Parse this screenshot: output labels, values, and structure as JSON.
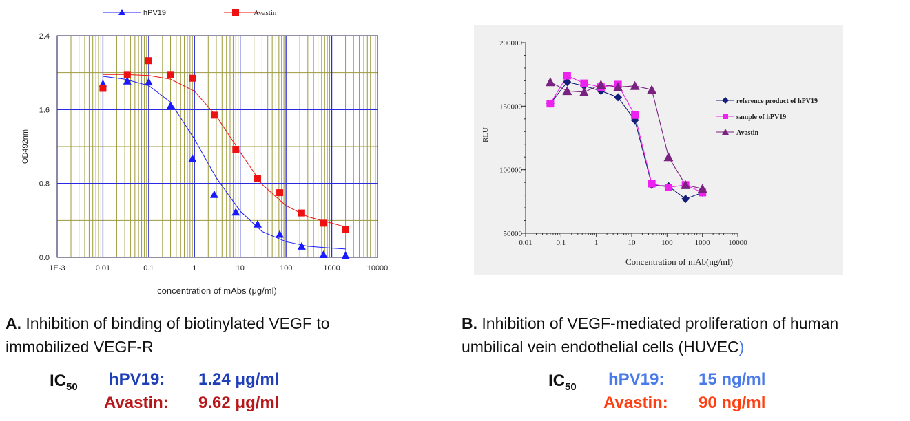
{
  "colors": {
    "a_h": "#1a1aff",
    "a_a": "#ee1111",
    "b_ref": "#141e78",
    "b_samp": "#ee22ee",
    "b_av": "#7a2280",
    "ic_a_h": "#1f3fb8",
    "ic_a_a": "#b8171a",
    "ic_b_h": "#4a7ae8",
    "ic_b_a": "#ff3f11"
  },
  "chart_data": [
    {
      "type": "scatter",
      "title": "",
      "xlabel": "concentration of mAbs (μg/ml)",
      "ylabel": "OD492nm",
      "xscale": "log",
      "xlim": [
        0.001,
        10000
      ],
      "ylim": [
        0.0,
        2.4
      ],
      "xticks": [
        "1E-3",
        "0.01",
        "0.1",
        "1",
        "10",
        "100",
        "1000",
        "10000"
      ],
      "yticks": [
        "0.0",
        "0.8",
        "1.6",
        "2.4"
      ],
      "grid": true,
      "legend": "top",
      "series": [
        {
          "name": "hPV19",
          "marker": "triangle",
          "x": [
            0.01,
            0.034,
            0.1,
            0.3,
            0.9,
            2.7,
            8,
            24,
            73,
            220,
            660,
            2000
          ],
          "y": [
            1.88,
            1.91,
            1.9,
            1.64,
            1.07,
            0.68,
            0.49,
            0.36,
            0.25,
            0.12,
            0.03,
            0.02
          ],
          "fit": [
            [
              0.01,
              1.96
            ],
            [
              0.03,
              1.93
            ],
            [
              0.1,
              1.86
            ],
            [
              0.3,
              1.68
            ],
            [
              1,
              1.28
            ],
            [
              3,
              0.86
            ],
            [
              10,
              0.5
            ],
            [
              30,
              0.28
            ],
            [
              100,
              0.17
            ],
            [
              300,
              0.12
            ],
            [
              1000,
              0.1
            ],
            [
              2000,
              0.09
            ]
          ]
        },
        {
          "name": "Avastin",
          "marker": "square",
          "x": [
            0.01,
            0.034,
            0.1,
            0.3,
            0.9,
            2.7,
            8,
            24,
            73,
            220,
            660,
            2000
          ],
          "y": [
            1.83,
            1.98,
            2.13,
            1.98,
            1.94,
            1.54,
            1.17,
            0.85,
            0.7,
            0.48,
            0.37,
            0.3
          ],
          "fit": [
            [
              0.01,
              1.98
            ],
            [
              0.03,
              1.98
            ],
            [
              0.1,
              1.97
            ],
            [
              0.3,
              1.93
            ],
            [
              1,
              1.8
            ],
            [
              3,
              1.53
            ],
            [
              10,
              1.14
            ],
            [
              30,
              0.79
            ],
            [
              100,
              0.56
            ],
            [
              300,
              0.44
            ],
            [
              1000,
              0.37
            ],
            [
              2000,
              0.33
            ]
          ]
        }
      ]
    },
    {
      "type": "line",
      "title": "",
      "xlabel": "Concentration of mAb(ng/ml)",
      "ylabel": "RLU",
      "xscale": "log",
      "xlim": [
        0.01,
        10000
      ],
      "ylim": [
        50000,
        200000
      ],
      "xticks": [
        "0.01",
        "0.1",
        "1",
        "10",
        "100",
        "1000",
        "10000"
      ],
      "yticks": [
        "50000",
        "100000",
        "150000",
        "200000"
      ],
      "grid": false,
      "legend": "right",
      "series": [
        {
          "name": "reference product of hPV19",
          "marker": "diamond",
          "x": [
            0.05,
            0.15,
            0.45,
            1.35,
            4.1,
            12.3,
            37,
            110,
            333,
            1000
          ],
          "y": [
            152000,
            169000,
            166000,
            162000,
            157000,
            139000,
            88000,
            87000,
            77000,
            82000
          ]
        },
        {
          "name": "sample of hPV19",
          "marker": "square",
          "x": [
            0.05,
            0.15,
            0.45,
            1.35,
            4.1,
            12.3,
            37,
            110,
            333,
            1000
          ],
          "y": [
            152000,
            174000,
            168000,
            165000,
            167000,
            143000,
            89000,
            86000,
            88000,
            82000
          ]
        },
        {
          "name": "Avastin",
          "marker": "triangle",
          "x": [
            0.05,
            0.15,
            0.45,
            1.35,
            4.1,
            12.3,
            37,
            110,
            333,
            1000
          ],
          "y": [
            169000,
            162000,
            161000,
            167000,
            165000,
            166000,
            163000,
            110000,
            88000,
            85000
          ]
        }
      ]
    }
  ],
  "captions": {
    "a_letter": "A.",
    "a_line1": " Inhibition of binding of biotinylated VEGF to",
    "a_line2": "immobilized VEGF-R",
    "b_letter": "B.",
    "b_line1": " Inhibition of  VEGF-mediated proliferation of human",
    "b_line2": "umbilical vein endothelial cells (HUVEC",
    "b_paren": ")"
  },
  "ic50": {
    "label_main": "IC",
    "label_sub": "50",
    "a": {
      "h_name": "hPV19:",
      "h_value": "1.24 μg/ml",
      "a_name": "Avastin:",
      "a_value": "9.62 μg/ml"
    },
    "b": {
      "h_name": "hPV19:",
      "h_value": "15 ng/ml",
      "a_name": "Avastin:",
      "a_value": "90 ng/ml"
    }
  }
}
